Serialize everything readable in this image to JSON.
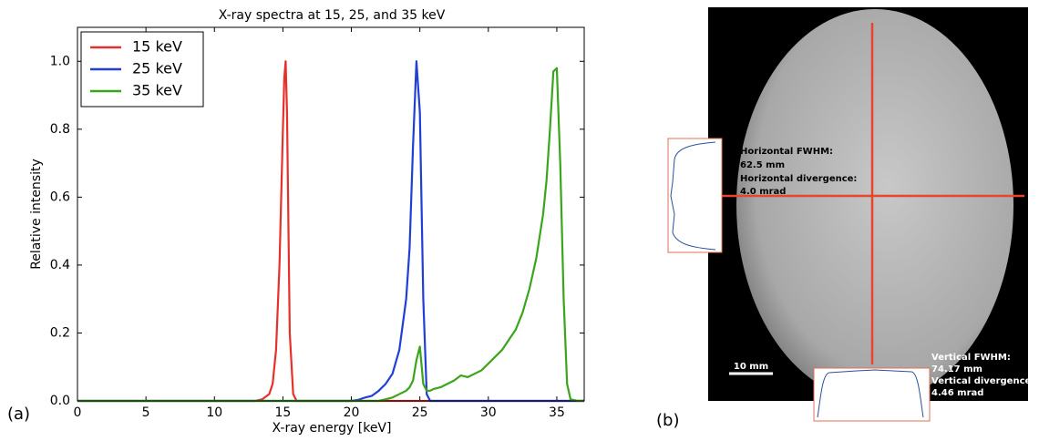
{
  "chart_data": {
    "type": "line",
    "title": "X-ray spectra at 15, 25, and 35 keV",
    "x_label": "X-ray energy [keV]",
    "y_label": "Relative intensity",
    "x": [
      0,
      5,
      10,
      12,
      13,
      13.5,
      14,
      14.25,
      14.5,
      14.75,
      15,
      15.1,
      15.2,
      15.3,
      15.5,
      15.75,
      16,
      17,
      18,
      19,
      20,
      20.5,
      21,
      21.5,
      22,
      22.5,
      23,
      23.5,
      24,
      24.25,
      24.5,
      24.75,
      25,
      25.25,
      25.5,
      25.75,
      26,
      26.5,
      27,
      27.5,
      28,
      28.5,
      29,
      29.5,
      30,
      30.5,
      31,
      31.5,
      32,
      32.5,
      33,
      33.5,
      34,
      34.25,
      34.5,
      34.75,
      35,
      35.25,
      35.5,
      35.75,
      36,
      36.5,
      37
    ],
    "series": [
      {
        "name": "15 keV",
        "color": "#e8302a",
        "values": [
          0,
          0,
          0,
          0,
          0,
          0.005,
          0.02,
          0.05,
          0.15,
          0.4,
          0.8,
          0.95,
          1.0,
          0.85,
          0.2,
          0.02,
          0,
          0,
          0,
          0,
          0,
          0,
          0,
          0,
          0,
          0,
          0,
          0,
          0,
          0,
          0,
          0,
          0,
          0,
          0,
          0,
          0,
          0,
          0,
          0,
          0,
          0,
          0,
          0,
          0,
          0,
          0,
          0,
          0,
          0,
          0,
          0,
          0,
          0,
          0,
          0,
          0,
          0,
          0,
          0,
          0,
          0,
          0
        ]
      },
      {
        "name": "25 keV",
        "color": "#1f3fd6",
        "values": [
          0,
          0,
          0,
          0,
          0,
          0,
          0,
          0,
          0,
          0,
          0,
          0,
          0,
          0,
          0,
          0,
          0,
          0,
          0,
          0,
          0,
          0.003,
          0.01,
          0.015,
          0.03,
          0.05,
          0.08,
          0.15,
          0.3,
          0.45,
          0.75,
          1.0,
          0.85,
          0.3,
          0.02,
          0,
          0,
          0,
          0,
          0,
          0,
          0,
          0,
          0,
          0,
          0,
          0,
          0,
          0,
          0,
          0,
          0,
          0,
          0,
          0,
          0,
          0,
          0,
          0,
          0,
          0,
          0,
          0
        ]
      },
      {
        "name": "35 keV",
        "color": "#3aa51a",
        "values": [
          0,
          0,
          0,
          0,
          0,
          0,
          0,
          0,
          0,
          0,
          0,
          0,
          0,
          0,
          0,
          0,
          0,
          0,
          0,
          0,
          0,
          0,
          0,
          0,
          0,
          0.005,
          0.01,
          0.02,
          0.03,
          0.04,
          0.06,
          0.12,
          0.16,
          0.05,
          0.03,
          0.03,
          0.035,
          0.04,
          0.05,
          0.06,
          0.075,
          0.07,
          0.08,
          0.09,
          0.11,
          0.13,
          0.15,
          0.18,
          0.21,
          0.26,
          0.33,
          0.42,
          0.55,
          0.65,
          0.8,
          0.97,
          0.98,
          0.7,
          0.3,
          0.05,
          0.005,
          0,
          0
        ]
      }
    ],
    "xlim": [
      0,
      37
    ],
    "xticks": [
      0,
      5,
      10,
      15,
      20,
      25,
      30,
      35
    ],
    "ylim": [
      0,
      1.1
    ],
    "yticks": [
      {
        "value": 0,
        "label": "0.0"
      },
      0.2,
      0.4,
      0.6,
      0.8,
      {
        "value": 1,
        "label": "1.0"
      }
    ],
    "legend": "upper left",
    "grid": false
  },
  "panel_labels": [
    "(a)",
    "(b)"
  ],
  "image_annotations": {
    "horizontal": [
      "Horizontal FWHM:",
      "62.5 mm",
      "Horizontal divergence:",
      "4.0 mrad"
    ],
    "vertical": [
      "Vertical FWHM:",
      "74.17 mm",
      "Vertical divergence:",
      "4.46 mrad"
    ],
    "scale_bar": "10 mm"
  }
}
